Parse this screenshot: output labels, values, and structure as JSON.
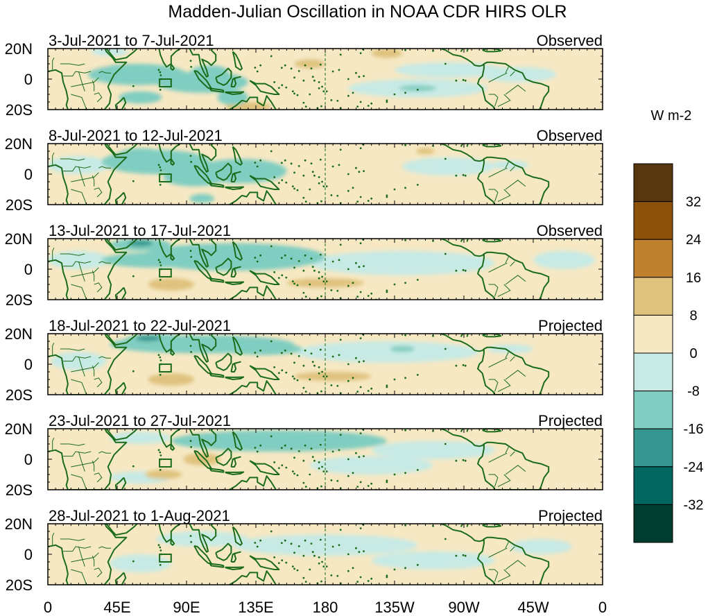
{
  "chart_data": {
    "type": "heatmap",
    "title": "Madden-Julian Oscillation in NOAA CDR HIRS OLR",
    "units": "W m-2",
    "x_ticks": [
      "0",
      "45E",
      "90E",
      "135E",
      "180",
      "135W",
      "90W",
      "45W",
      "0"
    ],
    "x_tick_lon": [
      0,
      45,
      90,
      135,
      180,
      225,
      270,
      315,
      360
    ],
    "y_ticks": [
      "20N",
      "0",
      "20S"
    ],
    "y_tick_lat": [
      20,
      0,
      -20
    ],
    "lon_range": [
      0,
      360
    ],
    "lat_range": [
      -20,
      20
    ],
    "colorbar": {
      "labels": [
        "32",
        "24",
        "16",
        "8",
        "0",
        "-8",
        "-16",
        "-24",
        "-32"
      ],
      "colors": [
        "#573610",
        "#8c510a",
        "#bf812d",
        "#dfc27d",
        "#f6e8c3",
        "#c7eae5",
        "#80cdc1",
        "#35978f",
        "#01665e",
        "#003c30"
      ]
    },
    "colors": {
      "land_outline": "#1a6b1a",
      "frame": "#000000",
      "dateline": "#1a6b1a"
    },
    "panels": [
      {
        "period": "3-Jul-2021 to 7-Jul-2021",
        "status": "Observed",
        "anomalies": [
          {
            "lon": 58,
            "lat": 3,
            "rlon": 32,
            "rlat": 7,
            "v": -9
          },
          {
            "lon": 100,
            "lat": -2,
            "rlon": 30,
            "rlat": 7,
            "v": -10
          },
          {
            "lon": 105,
            "lat": 5,
            "rlon": 12,
            "rlat": 4,
            "v": -14
          },
          {
            "lon": 120,
            "lat": -12,
            "rlon": 10,
            "rlat": 5,
            "v": -13
          },
          {
            "lon": 60,
            "lat": -12,
            "rlon": 14,
            "rlat": 4,
            "v": -10
          },
          {
            "lon": 240,
            "lat": -6,
            "rlon": 45,
            "rlat": 6,
            "v": -7
          },
          {
            "lon": 260,
            "lat": 6,
            "rlon": 35,
            "rlat": 5,
            "v": -6
          },
          {
            "lon": 305,
            "lat": 3,
            "rlon": 25,
            "rlat": 5,
            "v": -6
          },
          {
            "lon": 240,
            "lat": -6,
            "rlon": 12,
            "rlat": 2,
            "v": -12
          },
          {
            "lon": 40,
            "lat": 18,
            "rlon": 12,
            "rlat": 3,
            "v": -6
          },
          {
            "lon": 160,
            "lat": 12,
            "rlon": 35,
            "rlat": 8,
            "v": 3
          },
          {
            "lon": 170,
            "lat": 10,
            "rlon": 10,
            "rlat": 3,
            "v": 9
          },
          {
            "lon": 220,
            "lat": 17,
            "rlon": 10,
            "rlat": 3,
            "v": 10
          },
          {
            "lon": 130,
            "lat": -18,
            "rlon": 15,
            "rlat": 3,
            "v": 9
          },
          {
            "lon": 330,
            "lat": -14,
            "rlon": 20,
            "rlat": 5,
            "v": 3
          },
          {
            "lon": 80,
            "lat": 17,
            "rlon": 20,
            "rlat": 3,
            "v": 4
          },
          {
            "lon": 20,
            "lat": 12,
            "rlon": 20,
            "rlat": 8,
            "v": 3
          }
        ]
      },
      {
        "period": "8-Jul-2021 to 12-Jul-2021",
        "status": "Observed",
        "anomalies": [
          {
            "lon": 70,
            "lat": 8,
            "rlon": 35,
            "rlat": 8,
            "v": -10
          },
          {
            "lon": 60,
            "lat": 12,
            "rlon": 15,
            "rlat": 5,
            "v": -14
          },
          {
            "lon": 125,
            "lat": 2,
            "rlon": 30,
            "rlat": 8,
            "v": -10
          },
          {
            "lon": 130,
            "lat": 2,
            "rlon": 12,
            "rlat": 4,
            "v": -13
          },
          {
            "lon": 95,
            "lat": -2,
            "rlon": 20,
            "rlat": 6,
            "v": -9
          },
          {
            "lon": 20,
            "lat": 6,
            "rlon": 20,
            "rlat": 6,
            "v": -5
          },
          {
            "lon": 100,
            "lat": -16,
            "rlon": 8,
            "rlat": 3,
            "v": -9
          },
          {
            "lon": 260,
            "lat": 5,
            "rlon": 30,
            "rlat": 6,
            "v": -6
          },
          {
            "lon": 300,
            "lat": 6,
            "rlon": 12,
            "rlat": 3,
            "v": -6
          },
          {
            "lon": 230,
            "lat": -5,
            "rlon": 40,
            "rlat": 6,
            "v": 3
          },
          {
            "lon": 330,
            "lat": -10,
            "rlon": 20,
            "rlat": 6,
            "v": 3
          },
          {
            "lon": 50,
            "lat": -10,
            "rlon": 15,
            "rlat": 5,
            "v": 3
          },
          {
            "lon": 245,
            "lat": 15,
            "rlon": 6,
            "rlat": 2,
            "v": 9
          },
          {
            "lon": 165,
            "lat": -10,
            "rlon": 20,
            "rlat": 5,
            "v": 3
          },
          {
            "lon": 195,
            "lat": 14,
            "rlon": 30,
            "rlat": 5,
            "v": 3
          }
        ]
      },
      {
        "period": "13-Jul-2021 to 17-Jul-2021",
        "status": "Observed",
        "anomalies": [
          {
            "lon": 120,
            "lat": 8,
            "rlon": 60,
            "rlat": 9,
            "v": -10
          },
          {
            "lon": 60,
            "lat": 16,
            "rlon": 20,
            "rlat": 4,
            "v": -13
          },
          {
            "lon": 60,
            "lat": 17,
            "rlon": 8,
            "rlat": 2,
            "v": -20
          },
          {
            "lon": 120,
            "lat": 10,
            "rlon": 25,
            "rlat": 5,
            "v": -13
          },
          {
            "lon": 70,
            "lat": 6,
            "rlon": 35,
            "rlat": 5,
            "v": -8
          },
          {
            "lon": 230,
            "lat": 4,
            "rlon": 60,
            "rlat": 8,
            "v": -7
          },
          {
            "lon": 20,
            "lat": 6,
            "rlon": 20,
            "rlat": 6,
            "v": -6
          },
          {
            "lon": 80,
            "lat": -10,
            "rlon": 15,
            "rlat": 4,
            "v": 9
          },
          {
            "lon": 180,
            "lat": -9,
            "rlon": 25,
            "rlat": 3,
            "v": 9
          },
          {
            "lon": 250,
            "lat": -10,
            "rlon": 40,
            "rlat": 6,
            "v": 3
          },
          {
            "lon": 300,
            "lat": -12,
            "rlon": 30,
            "rlat": 6,
            "v": 3
          },
          {
            "lon": 335,
            "lat": 6,
            "rlon": 20,
            "rlat": 6,
            "v": -5
          }
        ]
      },
      {
        "period": "18-Jul-2021 to 22-Jul-2021",
        "status": "Projected",
        "anomalies": [
          {
            "lon": 100,
            "lat": 13,
            "rlon": 60,
            "rlat": 6,
            "v": -10
          },
          {
            "lon": 70,
            "lat": 16,
            "rlon": 20,
            "rlat": 4,
            "v": -14
          },
          {
            "lon": 65,
            "lat": 17,
            "rlon": 8,
            "rlat": 2,
            "v": -20
          },
          {
            "lon": 140,
            "lat": 10,
            "rlon": 25,
            "rlat": 4,
            "v": -13
          },
          {
            "lon": 220,
            "lat": 8,
            "rlon": 60,
            "rlat": 7,
            "v": -6
          },
          {
            "lon": 230,
            "lat": 10,
            "rlon": 8,
            "rlat": 2,
            "v": -12
          },
          {
            "lon": 300,
            "lat": 10,
            "rlon": 15,
            "rlat": 3,
            "v": -6
          },
          {
            "lon": 20,
            "lat": 2,
            "rlon": 18,
            "rlat": 6,
            "v": -5
          },
          {
            "lon": 80,
            "lat": -10,
            "rlon": 15,
            "rlat": 4,
            "v": 9
          },
          {
            "lon": 185,
            "lat": -8,
            "rlon": 25,
            "rlat": 3,
            "v": 9
          },
          {
            "lon": 130,
            "lat": -5,
            "rlon": 15,
            "rlat": 4,
            "v": 3
          },
          {
            "lon": 250,
            "lat": -10,
            "rlon": 40,
            "rlat": 6,
            "v": 3
          },
          {
            "lon": 330,
            "lat": -4,
            "rlon": 20,
            "rlat": 8,
            "v": 3
          },
          {
            "lon": 90,
            "lat": 2,
            "rlon": 25,
            "rlat": 4,
            "v": 3
          }
        ]
      },
      {
        "period": "23-Jul-2021 to 27-Jul-2021",
        "status": "Projected",
        "anomalies": [
          {
            "lon": 150,
            "lat": 12,
            "rlon": 70,
            "rlat": 7,
            "v": -9
          },
          {
            "lon": 130,
            "lat": 12,
            "rlon": 25,
            "rlat": 4,
            "v": -13
          },
          {
            "lon": 60,
            "lat": 14,
            "rlon": 20,
            "rlat": 4,
            "v": -7
          },
          {
            "lon": 210,
            "lat": -4,
            "rlon": 40,
            "rlat": 6,
            "v": -6
          },
          {
            "lon": 250,
            "lat": 6,
            "rlon": 40,
            "rlat": 6,
            "v": -6
          },
          {
            "lon": 100,
            "lat": 0,
            "rlon": 12,
            "rlat": 4,
            "v": 9
          },
          {
            "lon": 75,
            "lat": -10,
            "rlon": 12,
            "rlat": 3,
            "v": 9
          },
          {
            "lon": 20,
            "lat": 10,
            "rlon": 20,
            "rlat": 8,
            "v": 3
          },
          {
            "lon": 290,
            "lat": -10,
            "rlon": 35,
            "rlat": 6,
            "v": 3
          },
          {
            "lon": 340,
            "lat": 12,
            "rlon": 20,
            "rlat": 6,
            "v": 3
          },
          {
            "lon": 60,
            "lat": -12,
            "rlon": 20,
            "rlat": 4,
            "v": -5
          }
        ]
      },
      {
        "period": "28-Jul-2021 to 1-Aug-2021",
        "status": "Projected",
        "anomalies": [
          {
            "lon": 180,
            "lat": 6,
            "rlon": 60,
            "rlat": 7,
            "v": -7
          },
          {
            "lon": 100,
            "lat": 10,
            "rlon": 30,
            "rlat": 5,
            "v": -5
          },
          {
            "lon": 250,
            "lat": -4,
            "rlon": 40,
            "rlat": 6,
            "v": -6
          },
          {
            "lon": 320,
            "lat": 5,
            "rlon": 20,
            "rlat": 5,
            "v": -6
          },
          {
            "lon": 60,
            "lat": -6,
            "rlon": 20,
            "rlat": 6,
            "v": -5
          },
          {
            "lon": 110,
            "lat": -2,
            "rlon": 20,
            "rlat": 5,
            "v": 3
          },
          {
            "lon": 20,
            "lat": 12,
            "rlon": 20,
            "rlat": 6,
            "v": 3
          },
          {
            "lon": 290,
            "lat": 14,
            "rlon": 25,
            "rlat": 4,
            "v": 3
          },
          {
            "lon": 150,
            "lat": -12,
            "rlon": 20,
            "rlat": 5,
            "v": 3
          }
        ]
      }
    ]
  }
}
